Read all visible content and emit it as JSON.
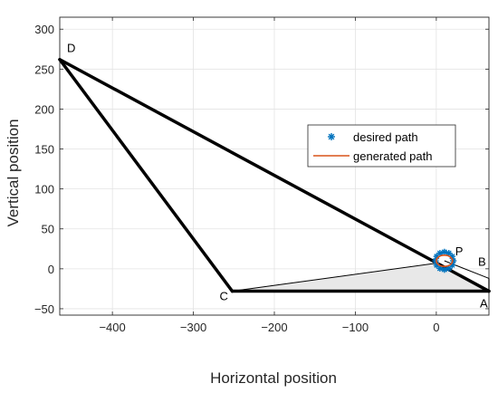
{
  "chart_data": {
    "type": "line",
    "title": "",
    "xlabel": "Horizontal position",
    "ylabel": "Vertical position",
    "xlim": [
      -465,
      65
    ],
    "ylim": [
      -58,
      315
    ],
    "xticks": [
      -400,
      -300,
      -200,
      -100,
      0
    ],
    "yticks": [
      -50,
      0,
      50,
      100,
      150,
      200,
      250,
      300
    ],
    "xtick_labels": [
      "−400",
      "−300",
      "−200",
      "−100",
      "0"
    ],
    "ytick_labels": [
      "−50",
      "0",
      "50",
      "100",
      "150",
      "200",
      "250",
      "300"
    ],
    "grid": true,
    "legend_position": "right-middle",
    "links": [
      {
        "name": "AD",
        "x": [
          65,
          -465
        ],
        "y": [
          -28,
          262
        ],
        "width": "thick"
      },
      {
        "name": "DC",
        "x": [
          -465,
          -252
        ],
        "y": [
          262,
          -28
        ],
        "width": "thick"
      },
      {
        "name": "CA",
        "x": [
          -252,
          65
        ],
        "y": [
          -28,
          -28
        ],
        "width": "thick"
      }
    ],
    "coupler": {
      "vertices_x": [
        -252,
        0,
        65
      ],
      "vertices_y": [
        -28,
        7,
        -28
      ],
      "fill": "#e8e8e8"
    },
    "points": [
      {
        "label": "A",
        "x": 65,
        "y": -28
      },
      {
        "label": "B",
        "x": 65,
        "y": -12
      },
      {
        "label": "C",
        "x": -252,
        "y": -28
      },
      {
        "label": "D",
        "x": -465,
        "y": 262
      },
      {
        "label": "P",
        "x": 10,
        "y": 10
      }
    ],
    "series": [
      {
        "name": "desired path",
        "marker": "asterisk",
        "color": "#0072BD",
        "center": [
          10,
          10
        ],
        "radius": [
          11,
          11
        ],
        "point_count": 12
      },
      {
        "name": "generated path",
        "marker": "line",
        "color": "#D95319",
        "center": [
          10,
          10
        ],
        "radius": [
          10,
          7
        ]
      }
    ]
  }
}
